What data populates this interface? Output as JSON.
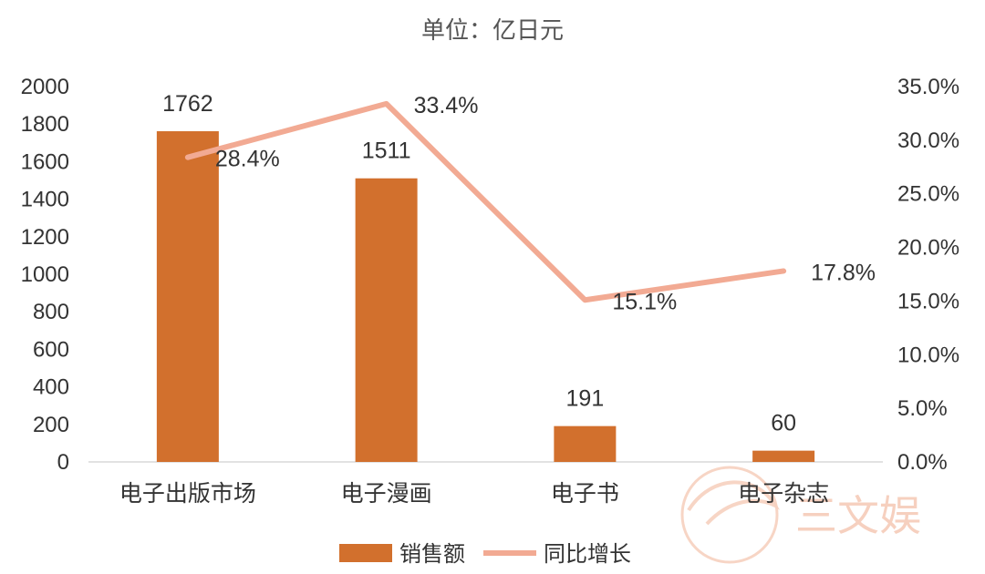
{
  "chart_data": {
    "type": "bar",
    "title": "单位：亿日元",
    "categories": [
      "电子出版市场",
      "电子漫画",
      "电子书",
      "电子杂志"
    ],
    "series": [
      {
        "name": "销售额",
        "type": "bar",
        "axis": "left",
        "color": "#d2702d",
        "values": [
          1762,
          1511,
          191,
          60
        ]
      },
      {
        "name": "同比增长",
        "type": "line",
        "axis": "right",
        "color": "#f2aa93",
        "values": [
          28.4,
          33.4,
          15.1,
          17.8
        ]
      }
    ],
    "data_labels": {
      "bar": [
        "1762",
        "1511",
        "191",
        "60"
      ],
      "line": [
        "28.4%",
        "33.4%",
        "15.1%",
        "17.8%"
      ]
    },
    "y_left": {
      "min": 0,
      "max": 2000,
      "step": 200,
      "ticks": [
        "0",
        "200",
        "400",
        "600",
        "800",
        "1000",
        "1200",
        "1400",
        "1600",
        "1800",
        "2000"
      ]
    },
    "y_right": {
      "min": 0,
      "max": 35,
      "step": 5,
      "ticks": [
        "0.0%",
        "5.0%",
        "10.0%",
        "15.0%",
        "20.0%",
        "25.0%",
        "30.0%",
        "35.0%"
      ]
    },
    "legend_position": "bottom",
    "grid": false
  },
  "watermark": {
    "text": "三文娱",
    "color": "#f6d0bf"
  }
}
